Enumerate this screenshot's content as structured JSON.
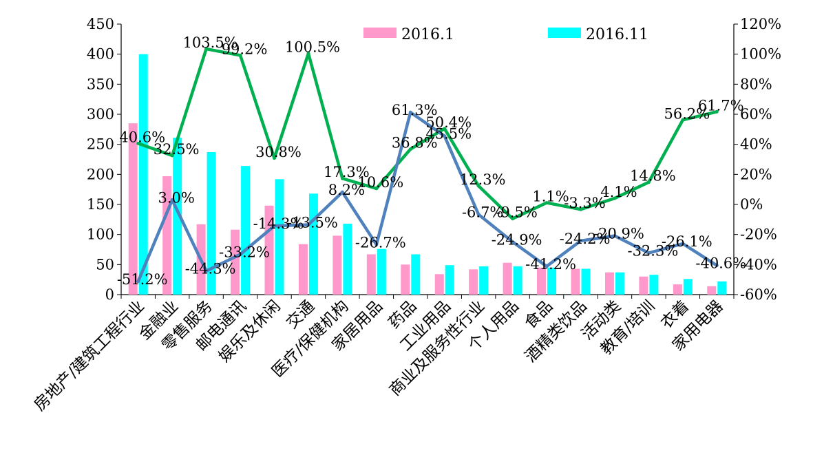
{
  "chart_data": {
    "type": "bar+line",
    "categories": [
      "房地产/建筑工程行业",
      "金融业",
      "零售服务",
      "邮电通讯",
      "娱乐及休闲",
      "交通",
      "医疗/保健机构",
      "家居用品",
      "药品",
      "工业用品",
      "商业及服务性行业",
      "个人用品",
      "食品",
      "酒精类饮品",
      "活动类",
      "教育/培训",
      "衣着",
      "家用电器"
    ],
    "bar_series": [
      {
        "name": "2016.1",
        "color": "#ff99cc",
        "values": [
          285,
          197,
          117,
          108,
          148,
          84,
          98,
          67,
          50,
          34,
          42,
          53,
          45,
          43,
          37,
          30,
          17,
          14
        ]
      },
      {
        "name": "2016.11",
        "color": "#00ffff",
        "values": [
          400,
          261,
          237,
          214,
          192,
          168,
          118,
          76,
          67,
          49,
          47,
          47,
          45,
          43,
          37,
          33,
          26,
          22
        ]
      }
    ],
    "line_series": [
      {
        "color": "#00b050",
        "values": [
          40.6,
          32.5,
          103.5,
          99.2,
          30.8,
          100.5,
          17.3,
          10.6,
          36.8,
          50.4,
          12.3,
          -9.5,
          1.1,
          -3.3,
          4.1,
          14.8,
          56.2,
          61.7
        ],
        "labels": [
          "40.6%",
          "32.5%",
          "103.5%",
          "99.2%",
          "30.8%",
          "100.5%",
          "17.3%",
          "10.6%",
          "36.8%",
          "50.4%",
          "12.3%",
          "-9.5%",
          "1.1%",
          "-3.3%",
          "4.1%",
          "14.8%",
          "56.2%",
          "61.7%"
        ]
      },
      {
        "color": "#4f81bd",
        "values": [
          -51.2,
          3.0,
          -44.3,
          -33.2,
          -14.3,
          -13.5,
          8.2,
          -26.7,
          61.3,
          45.5,
          -6.7,
          -24.9,
          -41.2,
          -24.2,
          -20.9,
          -32.3,
          -26.1,
          -40.6
        ],
        "labels": [
          "-51.2%",
          "3.0%",
          "-44.3%",
          "-33.2%",
          "-14.3%",
          "-13.5%",
          "8.2%",
          "-26.7%",
          "61.3%",
          "45.5%",
          "-6.7%",
          "-24.9%",
          "-41.2%",
          "-24.2%",
          "-20.9%",
          "-32.3%",
          "-26.1%",
          "-40.6%"
        ]
      }
    ],
    "y_left": {
      "min": 0,
      "max": 450,
      "step": 50,
      "ticks": [
        "0",
        "50",
        "100",
        "150",
        "200",
        "250",
        "300",
        "350",
        "400",
        "450"
      ]
    },
    "y_right": {
      "min": -60,
      "max": 120,
      "step": 20,
      "ticks": [
        "-60%",
        "-40%",
        "-20%",
        "0%",
        "20%",
        "40%",
        "60%",
        "80%",
        "100%",
        "120%"
      ]
    },
    "legend_position": "top-center",
    "grid": false
  }
}
